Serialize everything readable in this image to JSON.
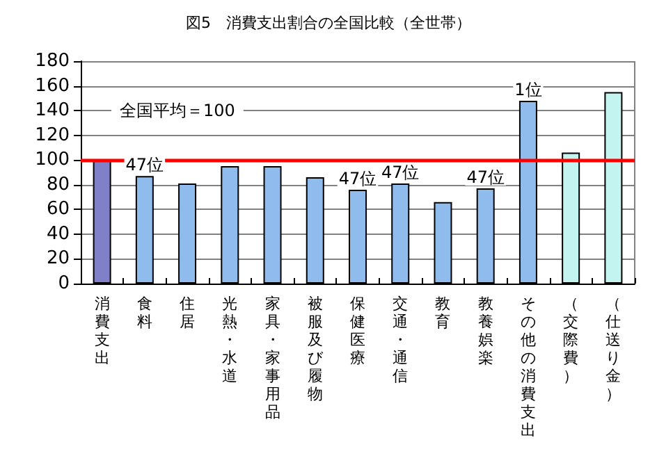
{
  "chart_data": {
    "type": "bar",
    "title": "図5　消費支出割合の全国比較（全世帯）",
    "categories": [
      "消費支出",
      "食料",
      "住居",
      "光熱・水道",
      "家具・家事用品",
      "被服及び履物",
      "保健医療",
      "交通・通信",
      "教育",
      "教養娯楽",
      "その他の消費支出",
      "（交際費）",
      "（仕送り金）"
    ],
    "values": [
      100,
      87,
      81,
      95,
      95,
      86,
      76,
      81,
      66,
      77,
      148,
      106,
      155
    ],
    "colors": [
      "#7f80c8",
      "#8fbcec",
      "#8fbcec",
      "#8fbcec",
      "#8fbcec",
      "#8fbcec",
      "#8fbcec",
      "#8fbcec",
      "#8fbcec",
      "#8fbcec",
      "#8fbcec",
      "#c4f4f0",
      "#c4f4f0"
    ],
    "annotations": [
      {
        "text": "47位",
        "x": "食料",
        "y": 87
      },
      {
        "text": "47位",
        "x": "保健医療",
        "y": 76
      },
      {
        "text": "47位",
        "x": "交通・通信",
        "y": 81
      },
      {
        "text": "47位",
        "x": "教養娯楽",
        "y": 77
      },
      {
        "text": "1位",
        "x": "その他の消費支出",
        "y": 148
      }
    ],
    "ylim": [
      0,
      180
    ],
    "yticks": [
      0,
      20,
      40,
      60,
      80,
      100,
      120,
      140,
      160,
      180
    ],
    "grid": "y",
    "ref_lines": [
      {
        "axis": "y",
        "value": 100,
        "label": "全国平均＝100",
        "color": "#ff0000"
      }
    ]
  }
}
